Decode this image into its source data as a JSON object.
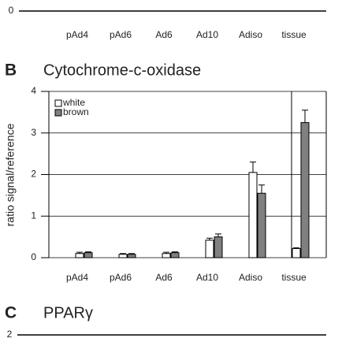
{
  "chart_data": [
    {
      "type": "bar",
      "categories": [
        "pAd4",
        "pAd6",
        "Ad6",
        "Ad10",
        "Adiso",
        "tissue"
      ],
      "yticks": [
        0
      ]
    },
    {
      "type": "bar",
      "panel": "B",
      "title": "Cytochrome-c-oxidase",
      "y_label": "ratio signal/reference",
      "categories": [
        "pAd4",
        "pAd6",
        "Ad6",
        "Ad10",
        "Adiso",
        "tissue"
      ],
      "series": [
        {
          "name": "white",
          "color": "#ffffff",
          "values": [
            0.1,
            0.08,
            0.1,
            0.42,
            2.05,
            0.22
          ],
          "errors": [
            0.03,
            0.02,
            0.03,
            0.05,
            0.25,
            0.02
          ]
        },
        {
          "name": "brown",
          "color": "#808080",
          "values": [
            0.12,
            0.08,
            0.12,
            0.5,
            1.55,
            3.25
          ],
          "errors": [
            0.02,
            0.02,
            0.02,
            0.07,
            0.2,
            0.3
          ]
        }
      ],
      "ylim": [
        0,
        4
      ],
      "yticks": [
        0,
        1,
        2,
        3,
        4
      ],
      "grid": true
    },
    {
      "type": "bar",
      "panel": "C",
      "title": "PPARγ",
      "yticks": [
        2
      ]
    }
  ]
}
